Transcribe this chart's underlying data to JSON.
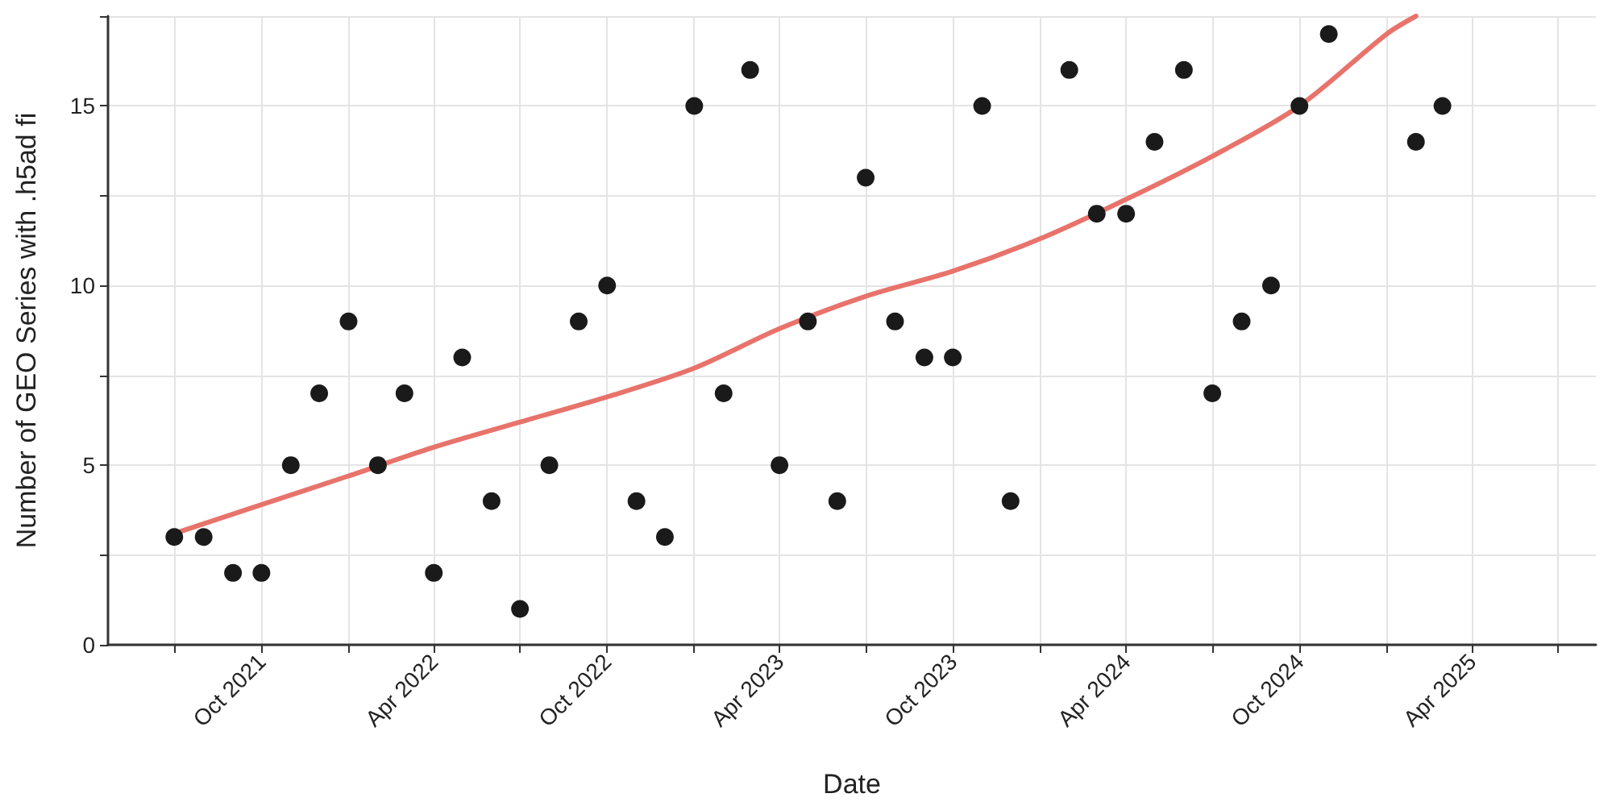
{
  "chart_data": {
    "type": "scatter",
    "xlabel": "Date",
    "ylabel": "Number of GEO Series with .h5ad fi",
    "x": [
      "2021-07",
      "2021-08",
      "2021-09",
      "2021-10",
      "2021-11",
      "2021-12",
      "2022-01",
      "2022-02",
      "2022-03",
      "2022-04",
      "2022-05",
      "2022-06",
      "2022-07",
      "2022-08",
      "2022-09",
      "2022-10",
      "2022-11",
      "2022-12",
      "2023-01",
      "2023-02",
      "2023-03",
      "2023-04",
      "2023-05",
      "2023-06",
      "2023-07",
      "2023-08",
      "2023-09",
      "2023-10",
      "2023-11",
      "2023-12",
      "2024-02",
      "2024-03",
      "2024-04",
      "2024-05",
      "2024-06",
      "2024-07",
      "2024-08",
      "2024-09",
      "2024-10",
      "2024-11",
      "2025-02",
      "2025-03"
    ],
    "series": [
      {
        "color": "#1a1a1a",
        "marker": "circle",
        "values": [
          3,
          3,
          2,
          2,
          5,
          7,
          9,
          5,
          7,
          2,
          8,
          4,
          1,
          5,
          9,
          10,
          4,
          3,
          15,
          7,
          16,
          5,
          9,
          4,
          13,
          9,
          8,
          8,
          15,
          4,
          16,
          12,
          12,
          14,
          16,
          7,
          9,
          10,
          15,
          17,
          14,
          15
        ]
      },
      {
        "type": "line",
        "color": "#e8736b",
        "marker": "none",
        "line_style": "solid",
        "x": [
          "2021-07",
          "2021-10",
          "2022-01",
          "2022-04",
          "2022-07",
          "2022-10",
          "2023-01",
          "2023-04",
          "2023-07",
          "2023-10",
          "2024-01",
          "2024-04",
          "2024-07",
          "2024-10",
          "2025-01",
          "2025-02"
        ],
        "values": [
          3.1,
          3.9,
          4.7,
          5.5,
          6.2,
          6.9,
          7.7,
          8.8,
          9.7,
          10.4,
          11.3,
          12.4,
          13.6,
          15.0,
          17.0,
          17.5
        ]
      }
    ],
    "xlim": [
      "2021-04-22",
      "2025-08-10"
    ],
    "xticks": [
      {
        "value": "2021-07-01",
        "label": null
      },
      {
        "value": "2021-10-01",
        "label": "Oct 2021"
      },
      {
        "value": "2022-01-01",
        "label": null
      },
      {
        "value": "2022-04-01",
        "label": "Apr 2022"
      },
      {
        "value": "2022-07-01",
        "label": null
      },
      {
        "value": "2022-10-01",
        "label": "Oct 2022"
      },
      {
        "value": "2023-01-01",
        "label": null
      },
      {
        "value": "2023-04-01",
        "label": "Apr 2023"
      },
      {
        "value": "2023-07-01",
        "label": null
      },
      {
        "value": "2023-10-01",
        "label": "Oct 2023"
      },
      {
        "value": "2024-01-01",
        "label": null
      },
      {
        "value": "2024-04-01",
        "label": "Apr 2024"
      },
      {
        "value": "2024-07-01",
        "label": null
      },
      {
        "value": "2024-10-01",
        "label": "Oct 2024"
      },
      {
        "value": "2025-01-01",
        "label": null
      },
      {
        "value": "2025-04-01",
        "label": "Apr 2025"
      },
      {
        "value": "2025-07-01",
        "label": null
      }
    ],
    "ylim": [
      0,
      17.5
    ],
    "yticks": [
      0,
      {
        "value": 2.5,
        "label": null
      },
      5,
      {
        "value": 7.5,
        "label": null
      },
      10,
      {
        "value": 12.5,
        "label": null
      },
      15,
      {
        "value": 17.5,
        "label": null
      }
    ],
    "grid": true
  }
}
